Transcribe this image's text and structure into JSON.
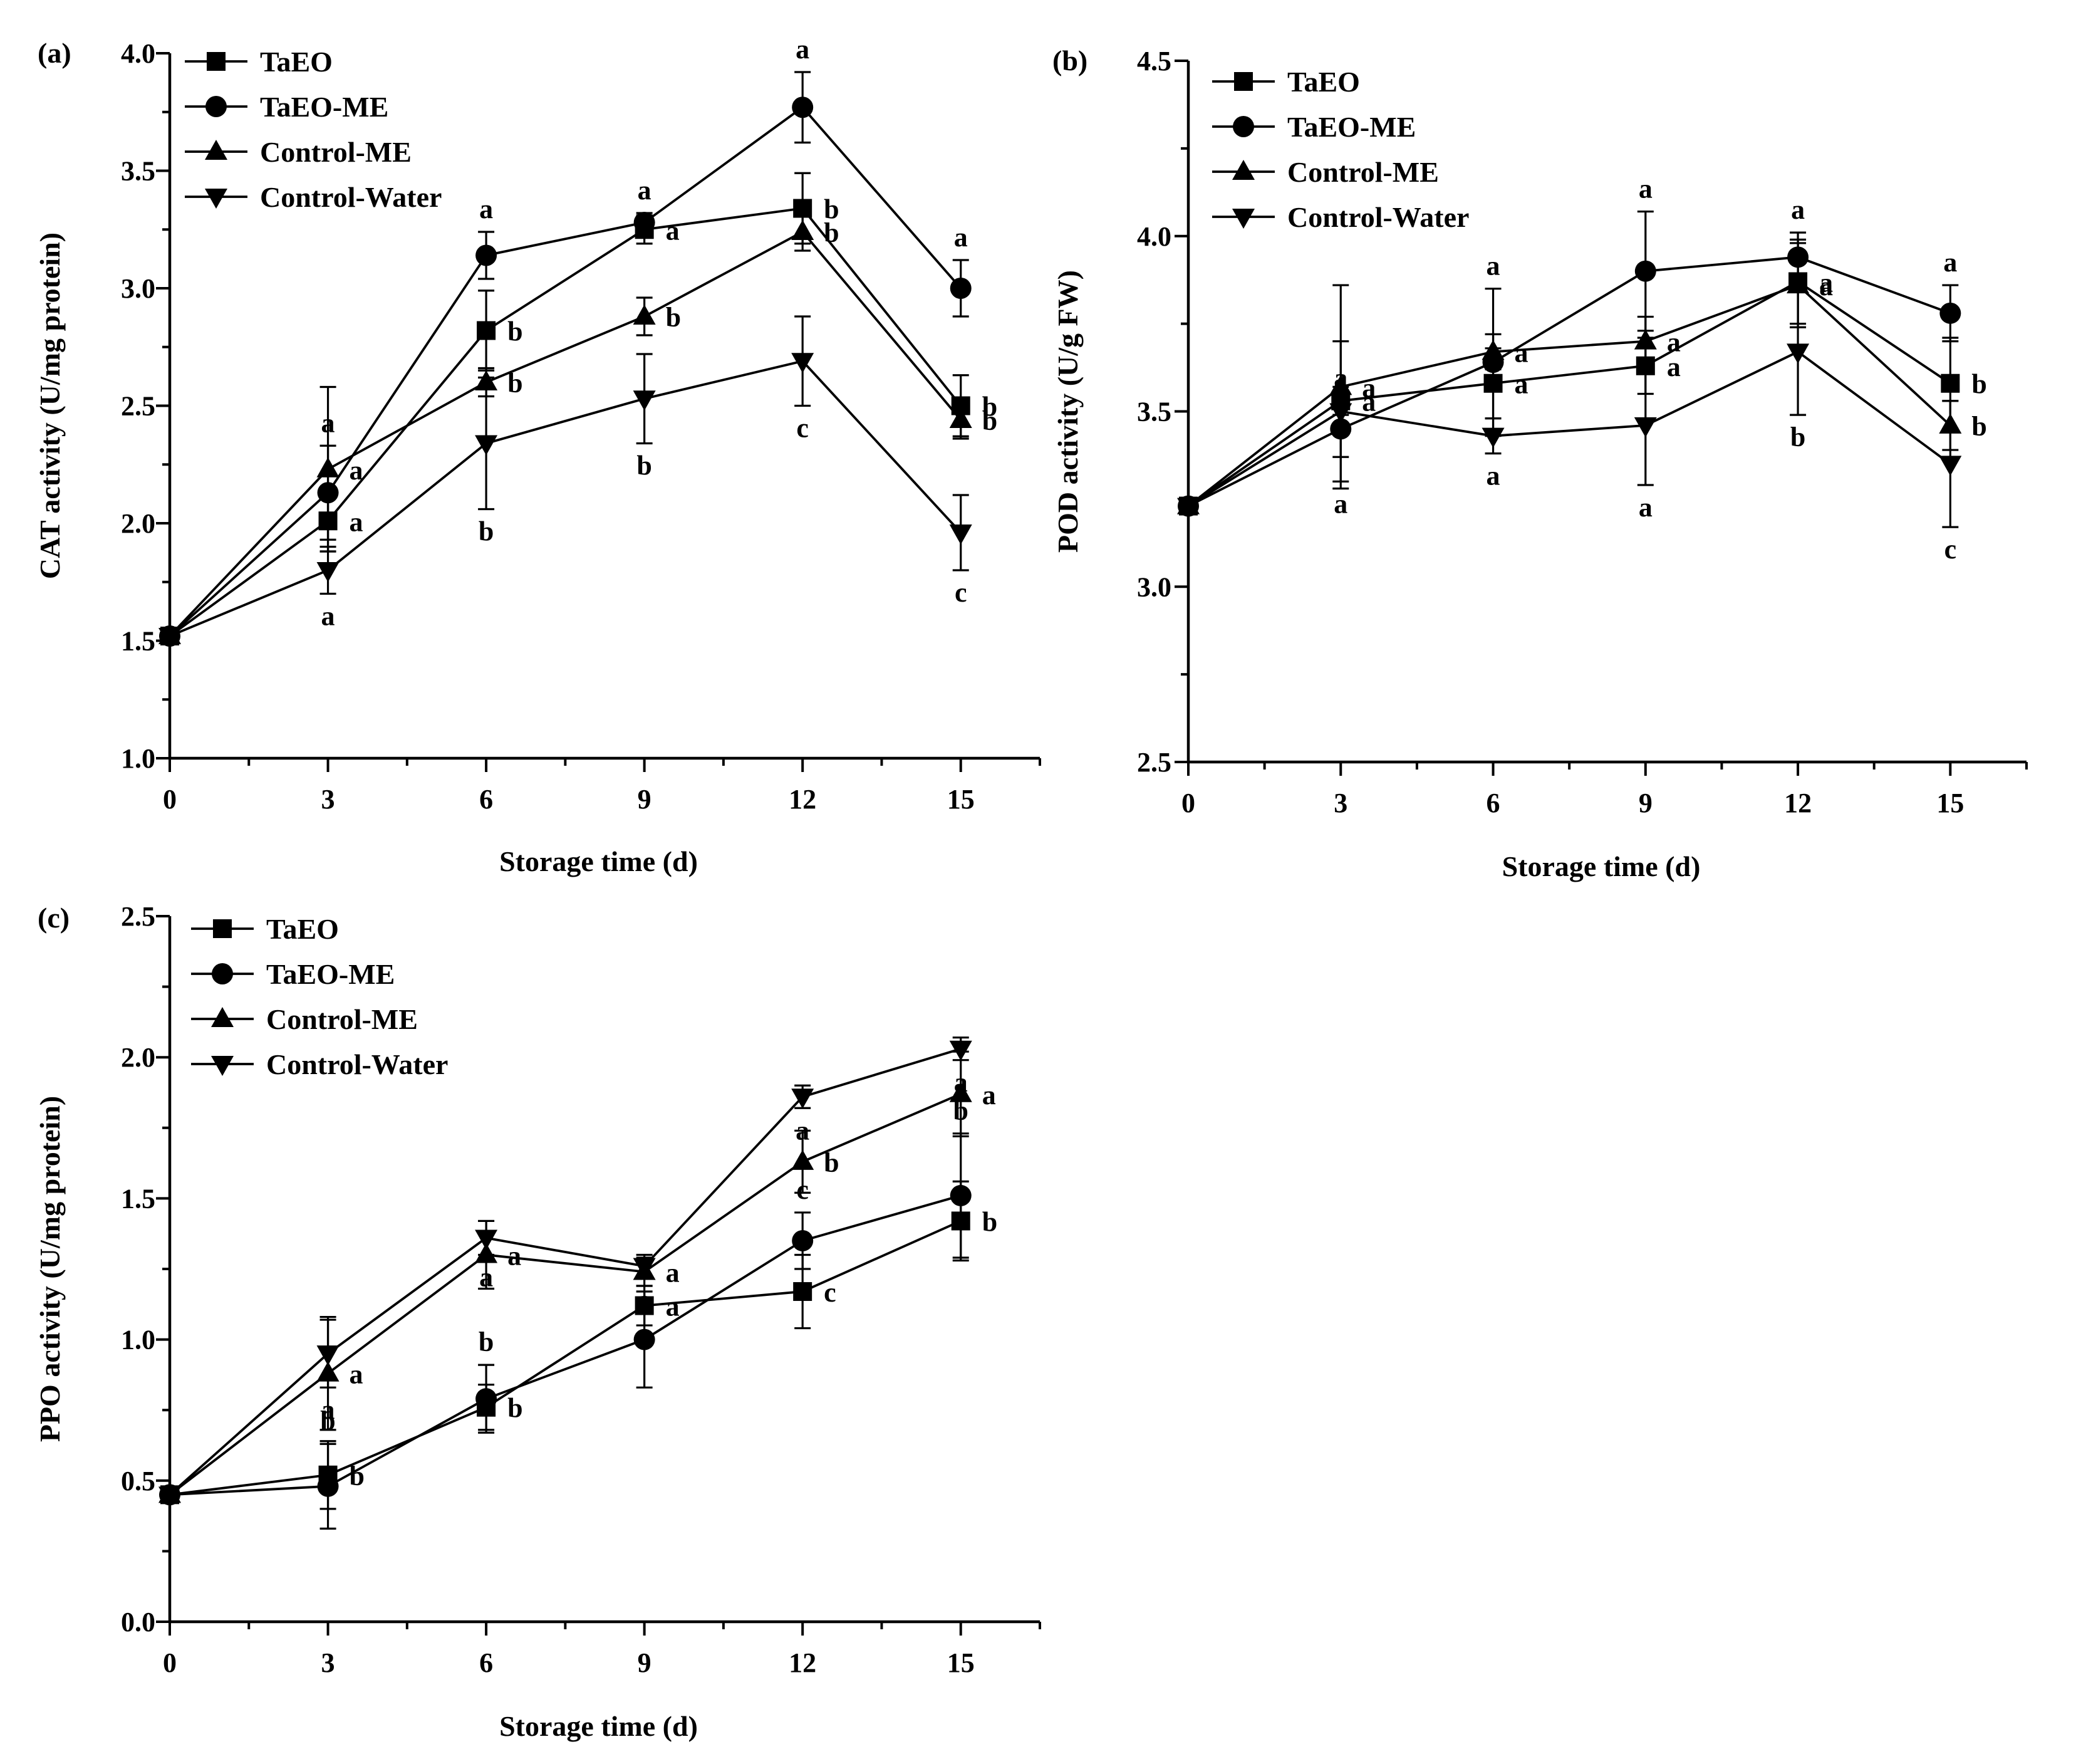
{
  "chart_data": [
    {
      "panel_label": "(a)",
      "type": "line",
      "x": [
        0,
        3,
        6,
        9,
        12,
        15
      ],
      "xticks": [
        "0",
        "3",
        "6",
        "9",
        "12",
        "15"
      ],
      "xlabel": "Storage time (d)",
      "ylabel": "CAT activity (U/mg protein)",
      "xlim": [
        0,
        16.5
      ],
      "ylim": [
        1.0,
        4.0
      ],
      "yticks": [
        "1.0",
        "1.5",
        "2.0",
        "2.5",
        "3.0",
        "3.5",
        "4.0"
      ],
      "legend_position": "top-left",
      "series": [
        {
          "name": "TaEO",
          "marker": "square",
          "values": [
            1.52,
            2.01,
            2.82,
            3.25,
            3.34,
            2.5
          ],
          "errors": [
            0.02,
            0.13,
            0.17,
            0.06,
            0.15,
            0.13
          ],
          "letters": [
            "",
            "a",
            "b",
            "a",
            "b",
            "b"
          ]
        },
        {
          "name": "TaEO-ME",
          "marker": "circle",
          "values": [
            1.52,
            2.13,
            3.14,
            3.28,
            3.77,
            3.0
          ],
          "errors": [
            0.02,
            0.2,
            0.1,
            0.04,
            0.15,
            0.12
          ],
          "letters": [
            "",
            "a",
            "a",
            "a",
            "a",
            "a"
          ]
        },
        {
          "name": "Control-ME",
          "marker": "triangle-up",
          "values": [
            1.52,
            2.23,
            2.6,
            2.88,
            3.24,
            2.44
          ],
          "errors": [
            0.02,
            0.35,
            0.06,
            0.08,
            0.08,
            0.08
          ],
          "letters": [
            "",
            "a",
            "b",
            "b",
            "b",
            "b"
          ]
        },
        {
          "name": "Control-Water",
          "marker": "triangle-down",
          "values": [
            1.52,
            1.8,
            2.34,
            2.53,
            2.69,
            1.96
          ],
          "errors": [
            0.02,
            0.1,
            0.28,
            0.19,
            0.19,
            0.16
          ],
          "letters": [
            "",
            "a",
            "b",
            "b",
            "c",
            "c"
          ]
        }
      ]
    },
    {
      "panel_label": "(b)",
      "type": "line",
      "x": [
        0,
        3,
        6,
        9,
        12,
        15
      ],
      "xticks": [
        "0",
        "3",
        "6",
        "9",
        "12",
        "15"
      ],
      "xlabel": "Storage time (d)",
      "ylabel": "POD activity (U/g FW)",
      "xlim": [
        0,
        16.5
      ],
      "ylim": [
        2.5,
        4.5
      ],
      "yticks": [
        "2.5",
        "3.0",
        "3.5",
        "4.0",
        "4.5"
      ],
      "legend_position": "top-left",
      "series": [
        {
          "name": "TaEO",
          "marker": "square",
          "values": [
            3.23,
            3.53,
            3.58,
            3.63,
            3.87,
            3.58
          ],
          "errors": [
            0.01,
            0.04,
            0.1,
            0.08,
            0.12,
            0.13
          ],
          "letters": [
            "",
            "a",
            "a",
            "a",
            "a",
            "b"
          ]
        },
        {
          "name": "TaEO-ME",
          "marker": "circle",
          "values": [
            3.23,
            3.45,
            3.64,
            3.9,
            3.94,
            3.78
          ],
          "errors": [
            0.01,
            0.08,
            0.21,
            0.17,
            0.07,
            0.08
          ],
          "letters": [
            "",
            "a",
            "a",
            "a",
            "a",
            "a"
          ]
        },
        {
          "name": "Control-ME",
          "marker": "triangle-up",
          "values": [
            3.23,
            3.57,
            3.67,
            3.7,
            3.86,
            3.46
          ],
          "errors": [
            0.01,
            0.29,
            0.05,
            0.07,
            0.12,
            0.07
          ],
          "letters": [
            "",
            "a",
            "a",
            "a",
            "a",
            "b"
          ]
        },
        {
          "name": "Control-Water",
          "marker": "triangle-down",
          "values": [
            3.23,
            3.5,
            3.43,
            3.46,
            3.67,
            3.35
          ],
          "errors": [
            0.01,
            0.2,
            0.05,
            0.17,
            0.18,
            0.18
          ],
          "letters": [
            "",
            "a",
            "a",
            "a",
            "b",
            "c"
          ]
        }
      ]
    },
    {
      "panel_label": "(c)",
      "type": "line",
      "x": [
        0,
        3,
        6,
        9,
        12,
        15
      ],
      "xticks": [
        "0",
        "3",
        "6",
        "9",
        "12",
        "15"
      ],
      "xlabel": "Storage time (d)",
      "ylabel": "PPO activity (U/mg protein)",
      "xlim": [
        0,
        16.5
      ],
      "ylim": [
        0.0,
        2.5
      ],
      "yticks": [
        "0.0",
        "0.5",
        "1.0",
        "1.5",
        "2.0",
        "2.5"
      ],
      "legend_position": "top-left",
      "series": [
        {
          "name": "TaEO",
          "marker": "square",
          "values": [
            0.45,
            0.52,
            0.76,
            1.12,
            1.17,
            1.42
          ],
          "errors": [
            0.02,
            0.12,
            0.08,
            0.07,
            0.13,
            0.14
          ],
          "letters": [
            "",
            "b",
            "b",
            "a",
            "c",
            "b"
          ]
        },
        {
          "name": "TaEO-ME",
          "marker": "circle",
          "values": [
            0.45,
            0.48,
            0.79,
            1.0,
            1.35,
            1.51
          ],
          "errors": [
            0.02,
            0.15,
            0.12,
            0.17,
            0.1,
            0.22
          ],
          "letters": [
            "",
            "b",
            "b",
            "a",
            "c",
            "b"
          ]
        },
        {
          "name": "Control-ME",
          "marker": "triangle-up",
          "values": [
            0.45,
            0.88,
            1.3,
            1.24,
            1.63,
            1.87
          ],
          "errors": [
            0.02,
            0.2,
            0.12,
            0.05,
            0.11,
            0.15
          ],
          "letters": [
            "",
            "a",
            "a",
            "a",
            "b",
            "a"
          ]
        },
        {
          "name": "Control-Water",
          "marker": "triangle-down",
          "values": [
            0.45,
            0.95,
            1.36,
            1.26,
            1.86,
            2.03
          ],
          "errors": [
            0.02,
            0.12,
            0.06,
            0.04,
            0.04,
            0.04
          ],
          "letters": [
            "",
            "a",
            "a",
            "a",
            "a",
            "a"
          ]
        }
      ]
    }
  ]
}
